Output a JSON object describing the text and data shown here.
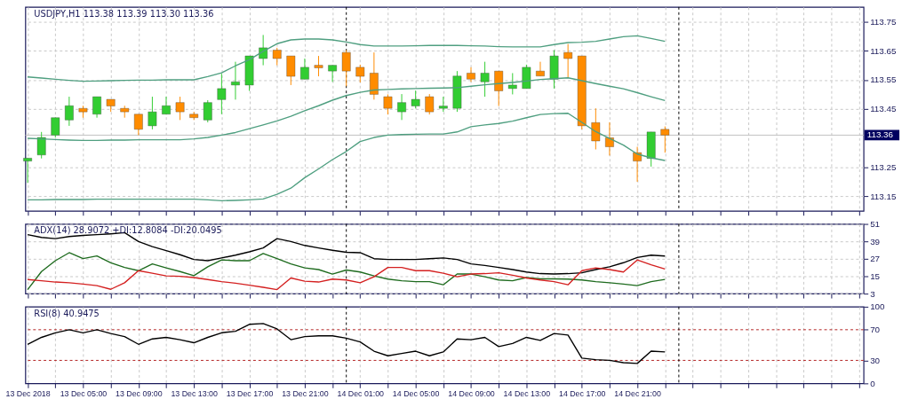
{
  "chart_data": [
    {
      "type": "candlestick",
      "title": "USDJPY,H1 113.38 113.39 113.30 113.36",
      "x": [
        "2018-12-13T01:00",
        "2018-12-13T02:00",
        "2018-12-13T03:00",
        "2018-12-13T04:00",
        "2018-12-13T05:00",
        "2018-12-13T06:00",
        "2018-12-13T07:00",
        "2018-12-13T08:00",
        "2018-12-13T09:00",
        "2018-12-13T10:00",
        "2018-12-13T11:00",
        "2018-12-13T12:00",
        "2018-12-13T13:00",
        "2018-12-13T14:00",
        "2018-12-13T15:00",
        "2018-12-13T16:00",
        "2018-12-13T17:00",
        "2018-12-13T18:00",
        "2018-12-13T19:00",
        "2018-12-13T20:00",
        "2018-12-13T21:00",
        "2018-12-13T22:00",
        "2018-12-13T23:00",
        "2018-12-14T00:00",
        "2018-12-14T01:00",
        "2018-12-14T02:00",
        "2018-12-14T03:00",
        "2018-12-14T04:00",
        "2018-12-14T05:00",
        "2018-12-14T06:00",
        "2018-12-14T07:00",
        "2018-12-14T08:00",
        "2018-12-14T09:00",
        "2018-12-14T10:00",
        "2018-12-14T11:00",
        "2018-12-14T12:00",
        "2018-12-14T13:00",
        "2018-12-14T14:00",
        "2018-12-14T15:00",
        "2018-12-14T16:00",
        "2018-12-14T17:00",
        "2018-12-14T18:00",
        "2018-12-14T19:00",
        "2018-12-14T20:00",
        "2018-12-14T21:00",
        "2018-12-14T22:00",
        "2018-12-14T23:00"
      ],
      "ohlc": [
        [
          113.271,
          113.281,
          113.196,
          113.281
        ],
        [
          113.292,
          113.371,
          113.28,
          113.352
        ],
        [
          113.36,
          113.42,
          113.352,
          113.42
        ],
        [
          113.412,
          113.492,
          113.392,
          113.461
        ],
        [
          113.452,
          113.461,
          113.42,
          113.44
        ],
        [
          113.432,
          113.492,
          113.42,
          113.492
        ],
        [
          113.483,
          113.483,
          113.44,
          113.46
        ],
        [
          113.452,
          113.461,
          113.42,
          113.44
        ],
        [
          113.432,
          113.432,
          113.36,
          113.38
        ],
        [
          113.392,
          113.492,
          113.38,
          113.44
        ],
        [
          113.432,
          113.492,
          113.432,
          113.461
        ],
        [
          113.472,
          113.492,
          113.412,
          113.44
        ],
        [
          113.432,
          113.44,
          113.412,
          113.42
        ],
        [
          113.412,
          113.48,
          113.404,
          113.472
        ],
        [
          113.482,
          113.571,
          113.432,
          113.52
        ],
        [
          113.532,
          113.612,
          113.482,
          113.543
        ],
        [
          113.532,
          113.632,
          113.512,
          113.632
        ],
        [
          113.623,
          113.704,
          113.6,
          113.66
        ],
        [
          113.652,
          113.66,
          113.6,
          113.623
        ],
        [
          113.632,
          113.632,
          113.532,
          113.562
        ],
        [
          113.552,
          113.623,
          113.552,
          113.593
        ],
        [
          113.6,
          113.632,
          113.562,
          113.591
        ],
        [
          113.58,
          113.6,
          113.543,
          113.6
        ],
        [
          113.644,
          113.652,
          113.528,
          113.58
        ],
        [
          113.593,
          113.602,
          113.541,
          113.562
        ],
        [
          113.573,
          113.644,
          113.482,
          113.5
        ],
        [
          113.492,
          113.5,
          113.431,
          113.452
        ],
        [
          113.44,
          113.501,
          113.412,
          113.472
        ],
        [
          113.46,
          113.513,
          113.452,
          113.483
        ],
        [
          113.492,
          113.501,
          113.431,
          113.44
        ],
        [
          113.452,
          113.492,
          113.44,
          113.46
        ],
        [
          113.452,
          113.58,
          113.44,
          113.563
        ],
        [
          113.573,
          113.593,
          113.543,
          113.552
        ],
        [
          113.543,
          113.612,
          113.492,
          113.573
        ],
        [
          113.58,
          113.58,
          113.46,
          113.512
        ],
        [
          113.52,
          113.573,
          113.5,
          113.532
        ],
        [
          113.52,
          113.602,
          113.52,
          113.593
        ],
        [
          113.58,
          113.612,
          113.563,
          113.563
        ],
        [
          113.552,
          113.652,
          113.52,
          113.632
        ],
        [
          113.644,
          113.673,
          113.557,
          113.623
        ],
        [
          113.632,
          113.632,
          113.38,
          113.392
        ],
        [
          113.403,
          113.452,
          113.311,
          113.34
        ],
        [
          113.351,
          113.404,
          113.29,
          113.32
        ],
        null,
        [
          113.3,
          113.32,
          113.2,
          113.271
        ],
        [
          113.28,
          113.371,
          113.252,
          113.371
        ],
        [
          113.38,
          113.39,
          113.3,
          113.36
        ]
      ],
      "colors": [
        "#32cd32",
        "#32cd32",
        "#32cd32",
        "#32cd32",
        "#ff8c00",
        "#32cd32",
        "#ff8c00",
        "#ff8c00",
        "#ff8c00",
        "#32cd32",
        "#32cd32",
        "#ff8c00",
        "#ff8c00",
        "#32cd32",
        "#32cd32",
        "#32cd32",
        "#32cd32",
        "#32cd32",
        "#ff8c00",
        "#ff8c00",
        "#32cd32",
        "#ff8c00",
        "#32cd32",
        "#ff8c00",
        "#ff8c00",
        "#ff8c00",
        "#ff8c00",
        "#32cd32",
        "#32cd32",
        "#ff8c00",
        "#32cd32",
        "#32cd32",
        "#ff8c00",
        "#32cd32",
        "#ff8c00",
        "#32cd32",
        "#32cd32",
        "#ff8c00",
        "#32cd32",
        "#ff8c00",
        "#ff8c00",
        "#ff8c00",
        "#ff8c00",
        null,
        "#ff8c00",
        "#32cd32",
        "#ff8c00"
      ],
      "series": [
        {
          "type": "line",
          "color": "#4f9f80",
          "values": [
            113.56,
            113.556,
            113.552,
            113.548,
            113.545,
            113.546,
            113.547,
            113.548,
            113.549,
            113.549,
            113.55,
            113.55,
            113.55,
            113.561,
            113.574,
            113.598,
            113.619,
            113.648,
            113.674,
            113.687,
            113.69,
            113.69,
            113.687,
            113.68,
            113.671,
            113.666,
            113.666,
            113.666,
            113.667,
            113.668,
            113.668,
            113.668,
            113.667,
            113.666,
            113.664,
            113.663,
            113.663,
            113.663,
            113.671,
            113.678,
            113.679,
            113.682,
            113.69,
            113.698,
            113.701,
            113.692,
            113.682
          ]
        },
        {
          "type": "line",
          "color": "#4f9f80",
          "values": [
            113.349,
            113.347,
            113.345,
            113.343,
            113.342,
            113.342,
            113.343,
            113.343,
            113.344,
            113.344,
            113.344,
            113.344,
            113.347,
            113.352,
            113.36,
            113.369,
            113.382,
            113.395,
            113.409,
            113.425,
            113.444,
            113.461,
            113.48,
            113.496,
            113.507,
            113.515,
            113.517,
            113.519,
            113.52,
            113.521,
            113.522,
            113.523,
            113.528,
            113.533,
            113.537,
            113.541,
            113.546,
            113.551,
            113.554,
            113.557,
            113.547,
            113.537,
            113.528,
            113.519,
            113.506,
            113.492,
            113.479
          ]
        },
        {
          "type": "line",
          "color": "#4f9f80",
          "values": [
            113.138,
            113.138,
            113.139,
            113.139,
            113.139,
            113.14,
            113.14,
            113.14,
            113.14,
            113.14,
            113.14,
            113.14,
            113.14,
            113.138,
            113.135,
            113.136,
            113.138,
            113.141,
            113.157,
            113.178,
            113.214,
            113.244,
            113.276,
            113.304,
            113.338,
            113.352,
            113.36,
            113.362,
            113.363,
            113.364,
            113.364,
            113.371,
            113.389,
            113.395,
            113.4,
            113.408,
            113.42,
            113.431,
            113.434,
            113.435,
            113.404,
            113.372,
            113.349,
            113.326,
            113.295,
            113.282,
            113.273
          ]
        }
      ],
      "xlim": [
        "2018-12-13T00:50",
        "2018-12-15T13:20"
      ],
      "xticks": [
        {
          "value": "2018-12-13T01:00",
          "label": null
        },
        {
          "value": "2018-12-13T03:00",
          "label": null
        },
        {
          "value": "2018-12-13T05:00",
          "label": null
        },
        {
          "value": "2018-12-13T07:00",
          "label": null
        },
        {
          "value": "2018-12-13T09:00",
          "label": null
        },
        {
          "value": "2018-12-13T11:00",
          "label": null
        },
        {
          "value": "2018-12-13T13:00",
          "label": null
        },
        {
          "value": "2018-12-13T15:00",
          "label": null
        },
        {
          "value": "2018-12-13T17:00",
          "label": null
        },
        {
          "value": "2018-12-13T19:00",
          "label": null
        },
        {
          "value": "2018-12-13T21:00",
          "label": null
        },
        {
          "value": "2018-12-13T23:00",
          "label": null
        },
        {
          "value": "2018-12-14T01:00",
          "label": null
        },
        {
          "value": "2018-12-14T03:00",
          "label": null
        },
        {
          "value": "2018-12-14T05:00",
          "label": null
        },
        {
          "value": "2018-12-14T07:00",
          "label": null
        },
        {
          "value": "2018-12-14T09:00",
          "label": null
        },
        {
          "value": "2018-12-14T11:00",
          "label": null
        },
        {
          "value": "2018-12-14T13:00",
          "label": null
        },
        {
          "value": "2018-12-14T15:00",
          "label": null
        },
        {
          "value": "2018-12-14T17:00",
          "label": null
        },
        {
          "value": "2018-12-14T19:00",
          "label": null
        },
        {
          "value": "2018-12-14T21:00",
          "label": null
        },
        {
          "value": "2018-12-14T23:00",
          "label": null
        },
        {
          "value": "2018-12-15T01:00",
          "label": null
        },
        {
          "value": "2018-12-15T03:00",
          "label": null
        },
        {
          "value": "2018-12-15T05:00",
          "label": null
        },
        {
          "value": "2018-12-15T07:00",
          "label": null
        },
        {
          "value": "2018-12-15T09:00",
          "label": null
        },
        {
          "value": "2018-12-15T11:00",
          "label": null
        },
        {
          "value": "2018-12-15T13:00",
          "label": null
        }
      ],
      "ylim": [
        113.1,
        113.8
      ],
      "yticks": [
        113.15,
        113.25,
        113.45,
        113.55,
        113.65,
        113.75
      ],
      "ref_lines": [
        {
          "axis": "x",
          "value": "2018-12-14T00:00",
          "color": "#000000",
          "line_style": "dashed"
        },
        {
          "axis": "x",
          "value": "2018-12-15T00:00",
          "color": "#000000",
          "line_style": "dashed"
        },
        {
          "axis": "y",
          "value": 113.36,
          "label": "113.36",
          "color": "#c0c0c0",
          "line_style": "solid"
        }
      ],
      "grid": true,
      "tick_labels": "y"
    },
    {
      "type": "line",
      "title": "ADX(14) 28.9072 +DI:12.8084 -DI:20.0495",
      "x": [
        "2018-12-13T01:00",
        "2018-12-13T02:00",
        "2018-12-13T03:00",
        "2018-12-13T04:00",
        "2018-12-13T05:00",
        "2018-12-13T06:00",
        "2018-12-13T07:00",
        "2018-12-13T08:00",
        "2018-12-13T09:00",
        "2018-12-13T10:00",
        "2018-12-13T11:00",
        "2018-12-13T12:00",
        "2018-12-13T13:00",
        "2018-12-13T14:00",
        "2018-12-13T15:00",
        "2018-12-13T16:00",
        "2018-12-13T17:00",
        "2018-12-13T18:00",
        "2018-12-13T19:00",
        "2018-12-13T20:00",
        "2018-12-13T21:00",
        "2018-12-13T22:00",
        "2018-12-13T23:00",
        "2018-12-14T00:00",
        "2018-12-14T01:00",
        "2018-12-14T02:00",
        "2018-12-14T03:00",
        "2018-12-14T04:00",
        "2018-12-14T05:00",
        "2018-12-14T06:00",
        "2018-12-14T07:00",
        "2018-12-14T08:00",
        "2018-12-14T09:00",
        "2018-12-14T10:00",
        "2018-12-14T11:00",
        "2018-12-14T12:00",
        "2018-12-14T13:00",
        "2018-12-14T14:00",
        "2018-12-14T15:00",
        "2018-12-14T16:00",
        "2018-12-14T17:00",
        "2018-12-14T18:00",
        "2018-12-14T19:00",
        "2018-12-14T20:00",
        "2018-12-14T21:00",
        "2018-12-14T22:00",
        "2018-12-14T23:00"
      ],
      "series": [
        {
          "color": "#000000",
          "values": [
            43.6,
            41.7,
            40.9,
            42.3,
            43.1,
            43.6,
            44.2,
            45.0,
            38.9,
            35.4,
            32.6,
            29.8,
            26.5,
            25.7,
            27.6,
            29.5,
            31.8,
            34.5,
            40.9,
            38.9,
            36.2,
            34.5,
            32.9,
            31.5,
            31.2,
            27.1,
            26.5,
            26.5,
            26.5,
            27.1,
            27.6,
            26.5,
            23.5,
            22.4,
            21.0,
            19.6,
            17.9,
            16.8,
            16.5,
            16.8,
            17.4,
            19.6,
            21.5,
            24.3,
            27.9,
            29.5,
            28.9
          ]
        },
        {
          "color": "#1e6b1e",
          "values": [
            5.8,
            18.2,
            25.7,
            31.2,
            27.1,
            29.0,
            24.3,
            21.0,
            18.8,
            23.5,
            20.7,
            18.2,
            15.4,
            21.5,
            26.2,
            25.7,
            25.7,
            30.6,
            27.1,
            23.5,
            20.7,
            19.6,
            16.5,
            19.3,
            17.9,
            15.2,
            13.0,
            11.9,
            11.3,
            11.3,
            9.1,
            16.5,
            16.5,
            14.6,
            12.4,
            11.9,
            14.1,
            13.2,
            13.2,
            13.0,
            12.4,
            11.3,
            10.5,
            9.6,
            8.5,
            11.3,
            12.8
          ]
        },
        {
          "color": "#d42020",
          "values": [
            12.7,
            11.9,
            11.0,
            10.5,
            9.6,
            8.5,
            6.0,
            10.5,
            18.8,
            17.1,
            15.2,
            14.9,
            14.1,
            12.7,
            11.3,
            10.2,
            8.8,
            7.4,
            5.8,
            13.8,
            11.6,
            11.0,
            13.0,
            12.4,
            10.5,
            14.6,
            21.0,
            21.0,
            18.8,
            18.8,
            17.1,
            14.6,
            16.5,
            16.8,
            17.4,
            15.7,
            13.8,
            12.4,
            11.3,
            9.1,
            18.8,
            20.7,
            19.6,
            17.9,
            26.2,
            22.9,
            20.0
          ]
        }
      ],
      "xlim": [
        "2018-12-13T00:50",
        "2018-12-15T13:20"
      ],
      "xticks": [
        {
          "value": "2018-12-13T01:00",
          "label": null
        },
        {
          "value": "2018-12-13T03:00",
          "label": null
        },
        {
          "value": "2018-12-13T05:00",
          "label": null
        },
        {
          "value": "2018-12-13T07:00",
          "label": null
        },
        {
          "value": "2018-12-13T09:00",
          "label": null
        },
        {
          "value": "2018-12-13T11:00",
          "label": null
        },
        {
          "value": "2018-12-13T13:00",
          "label": null
        },
        {
          "value": "2018-12-13T15:00",
          "label": null
        },
        {
          "value": "2018-12-13T17:00",
          "label": null
        },
        {
          "value": "2018-12-13T19:00",
          "label": null
        },
        {
          "value": "2018-12-13T21:00",
          "label": null
        },
        {
          "value": "2018-12-13T23:00",
          "label": null
        },
        {
          "value": "2018-12-14T01:00",
          "label": null
        },
        {
          "value": "2018-12-14T03:00",
          "label": null
        },
        {
          "value": "2018-12-14T05:00",
          "label": null
        },
        {
          "value": "2018-12-14T07:00",
          "label": null
        },
        {
          "value": "2018-12-14T09:00",
          "label": null
        },
        {
          "value": "2018-12-14T11:00",
          "label": null
        },
        {
          "value": "2018-12-14T13:00",
          "label": null
        },
        {
          "value": "2018-12-14T15:00",
          "label": null
        },
        {
          "value": "2018-12-14T17:00",
          "label": null
        },
        {
          "value": "2018-12-14T19:00",
          "label": null
        },
        {
          "value": "2018-12-14T21:00",
          "label": null
        },
        {
          "value": "2018-12-14T23:00",
          "label": null
        },
        {
          "value": "2018-12-15T01:00",
          "label": null
        },
        {
          "value": "2018-12-15T03:00",
          "label": null
        },
        {
          "value": "2018-12-15T05:00",
          "label": null
        },
        {
          "value": "2018-12-15T07:00",
          "label": null
        },
        {
          "value": "2018-12-15T09:00",
          "label": null
        },
        {
          "value": "2018-12-15T11:00",
          "label": null
        },
        {
          "value": "2018-12-15T13:00",
          "label": null
        }
      ],
      "ylim": [
        3,
        51
      ],
      "yticks": [
        3,
        15,
        27,
        39,
        51
      ],
      "ref_lines": [
        {
          "axis": "x",
          "value": "2018-12-14T00:00",
          "color": "#000000",
          "line_style": "dashed"
        },
        {
          "axis": "x",
          "value": "2018-12-15T00:00",
          "color": "#000000",
          "line_style": "dashed"
        }
      ],
      "grid": true,
      "tick_labels": "y"
    },
    {
      "type": "line",
      "title": "RSI(8) 40.9475",
      "x": [
        "2018-12-13T01:00",
        "2018-12-13T02:00",
        "2018-12-13T03:00",
        "2018-12-13T04:00",
        "2018-12-13T05:00",
        "2018-12-13T06:00",
        "2018-12-13T07:00",
        "2018-12-13T08:00",
        "2018-12-13T09:00",
        "2018-12-13T10:00",
        "2018-12-13T11:00",
        "2018-12-13T12:00",
        "2018-12-13T13:00",
        "2018-12-13T14:00",
        "2018-12-13T15:00",
        "2018-12-13T16:00",
        "2018-12-13T17:00",
        "2018-12-13T18:00",
        "2018-12-13T19:00",
        "2018-12-13T20:00",
        "2018-12-13T21:00",
        "2018-12-13T22:00",
        "2018-12-13T23:00",
        "2018-12-14T00:00",
        "2018-12-14T01:00",
        "2018-12-14T02:00",
        "2018-12-14T03:00",
        "2018-12-14T04:00",
        "2018-12-14T05:00",
        "2018-12-14T06:00",
        "2018-12-14T07:00",
        "2018-12-14T08:00",
        "2018-12-14T09:00",
        "2018-12-14T10:00",
        "2018-12-14T11:00",
        "2018-12-14T12:00",
        "2018-12-14T13:00",
        "2018-12-14T14:00",
        "2018-12-14T15:00",
        "2018-12-14T16:00",
        "2018-12-14T17:00",
        "2018-12-14T18:00",
        "2018-12-14T19:00",
        "2018-12-14T20:00",
        "2018-12-14T21:00",
        "2018-12-14T22:00",
        "2018-12-14T23:00"
      ],
      "series": [
        {
          "color": "#000000",
          "values": [
            51,
            60,
            66,
            70,
            66,
            70,
            65,
            61,
            51,
            58,
            60,
            57,
            53,
            60,
            66,
            68,
            77,
            78,
            71,
            57,
            61,
            62,
            62,
            59,
            54,
            42,
            36,
            39,
            42,
            36,
            41,
            58,
            57,
            60,
            48,
            52,
            60,
            56,
            65,
            63,
            33,
            31,
            30,
            27,
            26,
            42,
            41
          ]
        }
      ],
      "xlim": [
        "2018-12-13T00:50",
        "2018-12-15T13:20"
      ],
      "xticks": [
        {
          "value": "2018-12-13T01:00",
          "label": "13 Dec 2018"
        },
        {
          "value": "2018-12-13T03:00",
          "label": null
        },
        {
          "value": "2018-12-13T05:00",
          "label": "13 Dec 05:00"
        },
        {
          "value": "2018-12-13T07:00",
          "label": null
        },
        {
          "value": "2018-12-13T09:00",
          "label": "13 Dec 09:00"
        },
        {
          "value": "2018-12-13T11:00",
          "label": null
        },
        {
          "value": "2018-12-13T13:00",
          "label": "13 Dec 13:00"
        },
        {
          "value": "2018-12-13T15:00",
          "label": null
        },
        {
          "value": "2018-12-13T17:00",
          "label": "13 Dec 17:00"
        },
        {
          "value": "2018-12-13T19:00",
          "label": null
        },
        {
          "value": "2018-12-13T21:00",
          "label": "13 Dec 21:00"
        },
        {
          "value": "2018-12-13T23:00",
          "label": null
        },
        {
          "value": "2018-12-14T01:00",
          "label": "14 Dec 01:00"
        },
        {
          "value": "2018-12-14T03:00",
          "label": null
        },
        {
          "value": "2018-12-14T05:00",
          "label": "14 Dec 05:00"
        },
        {
          "value": "2018-12-14T07:00",
          "label": null
        },
        {
          "value": "2018-12-14T09:00",
          "label": "14 Dec 09:00"
        },
        {
          "value": "2018-12-14T11:00",
          "label": null
        },
        {
          "value": "2018-12-14T13:00",
          "label": "14 Dec 13:00"
        },
        {
          "value": "2018-12-14T15:00",
          "label": null
        },
        {
          "value": "2018-12-14T17:00",
          "label": "14 Dec 17:00"
        },
        {
          "value": "2018-12-14T19:00",
          "label": null
        },
        {
          "value": "2018-12-14T21:00",
          "label": "14 Dec 21:00"
        },
        {
          "value": "2018-12-14T23:00",
          "label": null
        },
        {
          "value": "2018-12-15T01:00",
          "label": null
        },
        {
          "value": "2018-12-15T03:00",
          "label": null
        },
        {
          "value": "2018-12-15T05:00",
          "label": null
        },
        {
          "value": "2018-12-15T07:00",
          "label": null
        },
        {
          "value": "2018-12-15T09:00",
          "label": null
        },
        {
          "value": "2018-12-15T11:00",
          "label": null
        },
        {
          "value": "2018-12-15T13:00",
          "label": null
        }
      ],
      "ylim": [
        0,
        100
      ],
      "yticks": [
        0,
        30,
        70,
        100
      ],
      "ref_lines": [
        {
          "axis": "y",
          "value": 70,
          "color": "#b22222",
          "line_style": "dashed"
        },
        {
          "axis": "y",
          "value": 30,
          "color": "#b22222",
          "line_style": "dashed"
        },
        {
          "axis": "x",
          "value": "2018-12-14T00:00",
          "color": "#000000",
          "line_style": "dashed"
        },
        {
          "axis": "x",
          "value": "2018-12-15T00:00",
          "color": "#000000",
          "line_style": "dashed"
        }
      ],
      "grid": "x"
    }
  ]
}
